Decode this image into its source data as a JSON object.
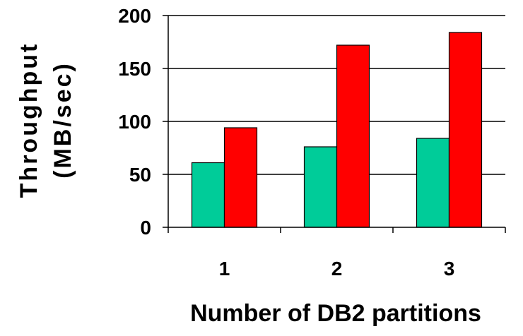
{
  "chart_data": {
    "type": "bar",
    "title": "",
    "xlabel": "Number of DB2 partitions",
    "ylabel_lines": [
      "Throughput",
      "(MB/sec)"
    ],
    "categories": [
      "1",
      "2",
      "3"
    ],
    "series": [
      {
        "values": [
          61,
          76,
          84
        ],
        "color": "#00cc99"
      },
      {
        "values": [
          94,
          172,
          184
        ],
        "color": "#ff0000"
      }
    ],
    "ylim": [
      0,
      200
    ],
    "yticks": [
      0,
      50,
      100,
      150,
      200
    ],
    "grid": true,
    "legend": "none"
  }
}
